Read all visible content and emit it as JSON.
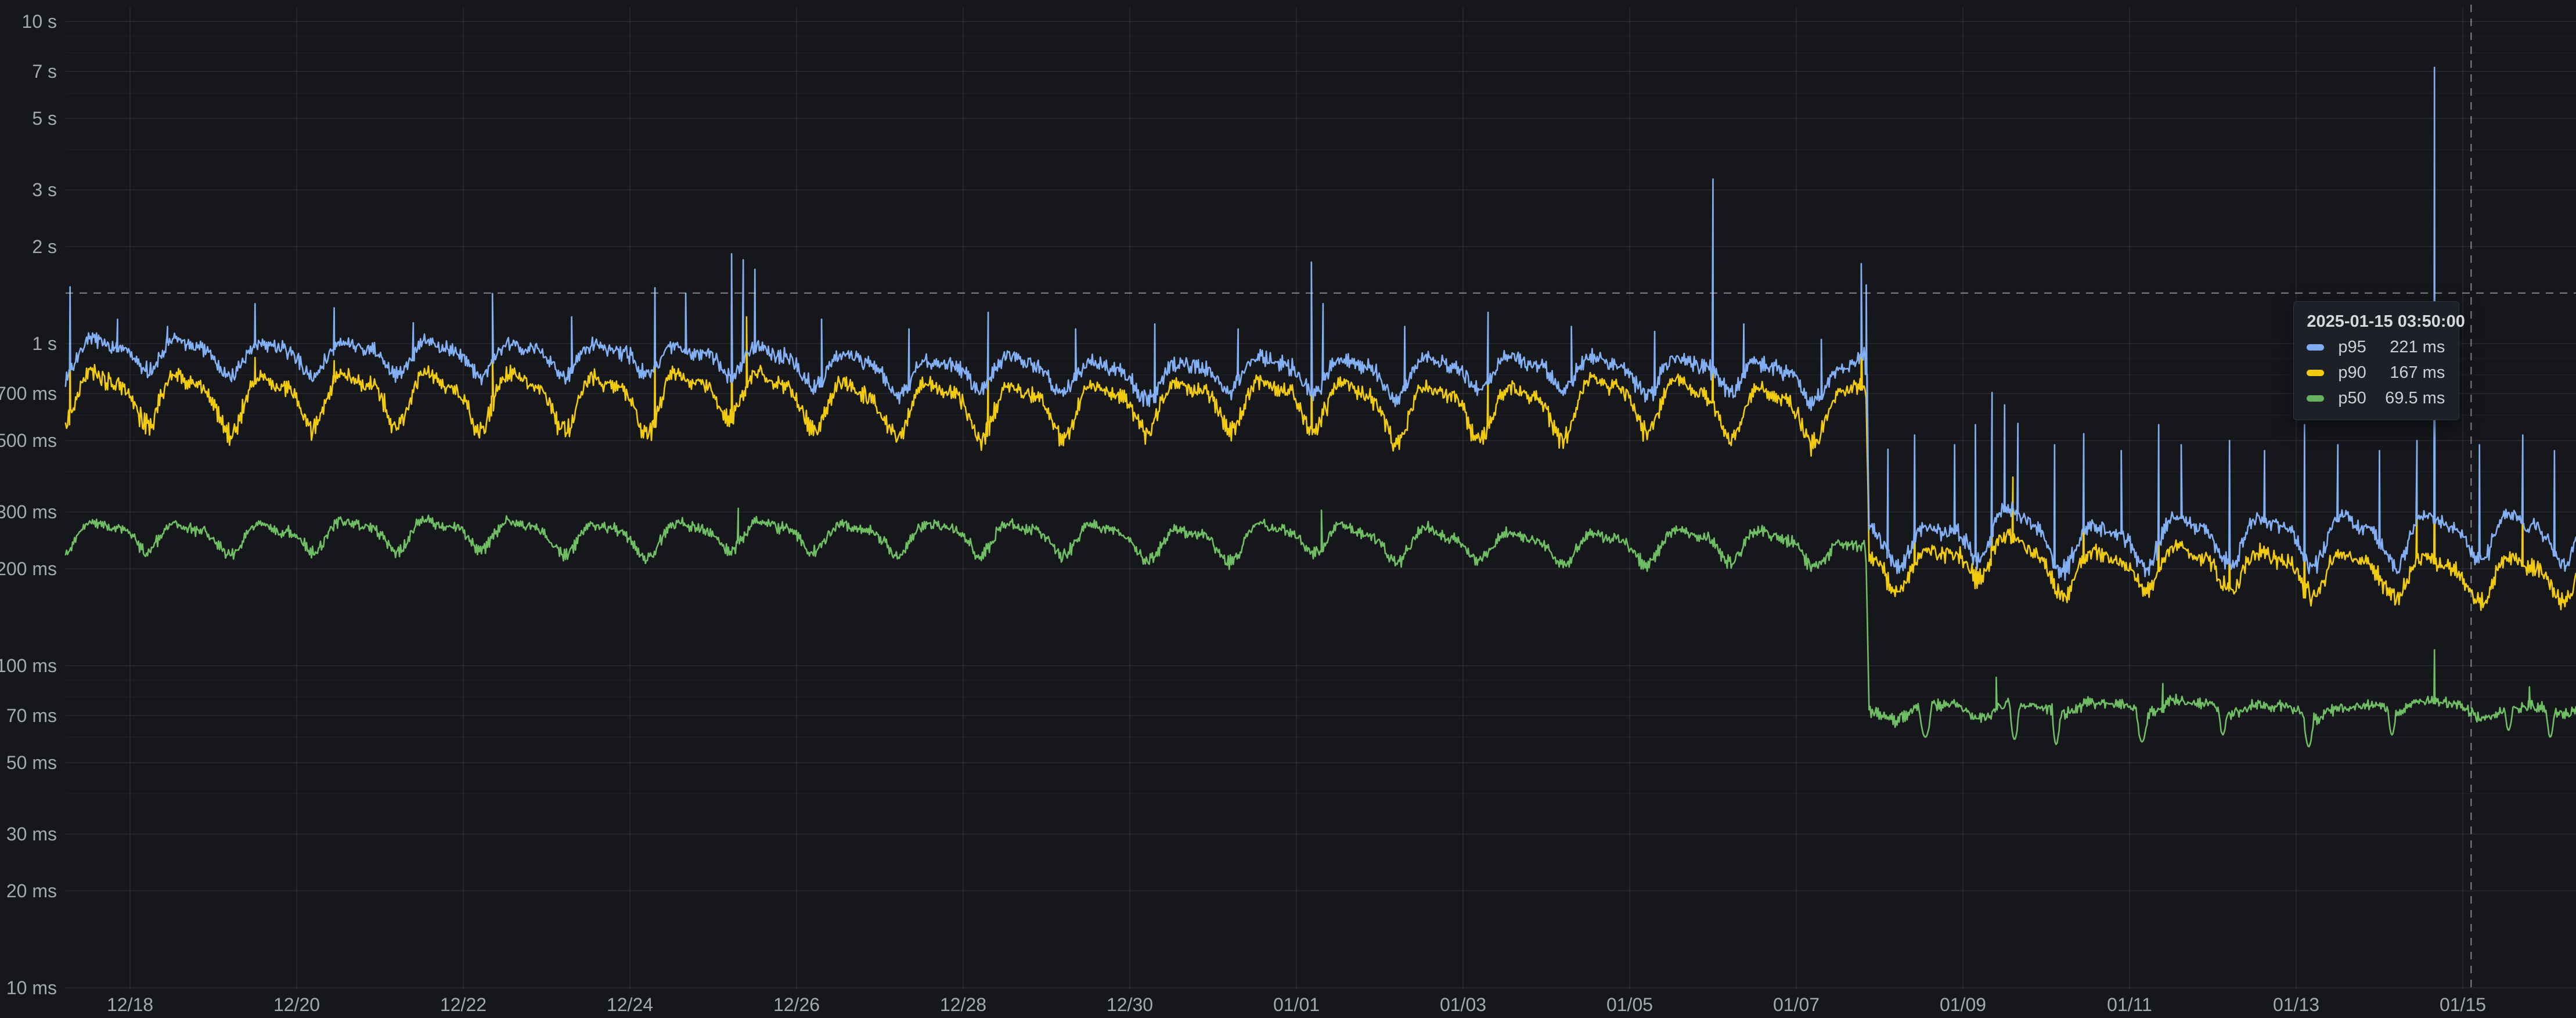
{
  "panel": {
    "background": "#15171b",
    "grid_major_color": "rgba(204,204,220,0.11)",
    "grid_minor_color": "rgba(204,204,220,0.05)",
    "tick_text_color": "#a4a8b0",
    "crosshair_color": "rgba(205,208,216,0.55)"
  },
  "tooltip": {
    "timestamp": "2025-01-15 03:50:00",
    "rows": [
      {
        "label": "p95",
        "value": "221 ms",
        "color": "#7fabf2"
      },
      {
        "label": "p90",
        "value": "167 ms",
        "color": "#f2cc0c"
      },
      {
        "label": "p50",
        "value": "69.5 ms",
        "color": "#67b15f"
      }
    ]
  },
  "chart_data": {
    "type": "line",
    "title": "",
    "xlabel": "",
    "ylabel": "",
    "y_scale": "log",
    "y_domain_ms": [
      10,
      10000
    ],
    "grid": true,
    "legend_position": "tooltip-only",
    "x_ticks": [
      {
        "day": 0,
        "label": "12/18"
      },
      {
        "day": 2,
        "label": "12/20"
      },
      {
        "day": 4,
        "label": "12/22"
      },
      {
        "day": 6,
        "label": "12/24"
      },
      {
        "day": 8,
        "label": "12/26"
      },
      {
        "day": 10,
        "label": "12/28"
      },
      {
        "day": 12,
        "label": "12/30"
      },
      {
        "day": 14,
        "label": "01/01"
      },
      {
        "day": 16,
        "label": "01/03"
      },
      {
        "day": 18,
        "label": "01/05"
      },
      {
        "day": 20,
        "label": "01/07"
      },
      {
        "day": 22,
        "label": "01/09"
      },
      {
        "day": 24,
        "label": "01/11"
      },
      {
        "day": 26,
        "label": "01/13"
      },
      {
        "day": 28,
        "label": "01/15"
      }
    ],
    "y_ticks": [
      {
        "ms": 10000,
        "label": "10 s"
      },
      {
        "ms": 7000,
        "label": "7 s"
      },
      {
        "ms": 5000,
        "label": "5 s"
      },
      {
        "ms": 3000,
        "label": "3 s"
      },
      {
        "ms": 2000,
        "label": "2 s"
      },
      {
        "ms": 1000,
        "label": "1 s"
      },
      {
        "ms": 700,
        "label": "700 ms"
      },
      {
        "ms": 500,
        "label": "500 ms"
      },
      {
        "ms": 300,
        "label": "300 ms"
      },
      {
        "ms": 200,
        "label": "200 ms"
      },
      {
        "ms": 100,
        "label": "100 ms"
      },
      {
        "ms": 70,
        "label": "70 ms"
      },
      {
        "ms": 50,
        "label": "50 ms"
      },
      {
        "ms": 30,
        "label": "30 ms"
      },
      {
        "ms": 20,
        "label": "20 ms"
      },
      {
        "ms": 10,
        "label": "10 ms"
      }
    ],
    "y_minor_gridlines_ms": [
      9000,
      8000,
      6000,
      4000,
      900,
      800,
      600,
      400,
      90,
      80,
      60,
      40
    ],
    "x_range": {
      "start_day": -0.774,
      "end_day": 29.36,
      "day0_label": "12/18"
    },
    "step_day": 20.85,
    "crosshair": {
      "day": 28.1,
      "value_ms": 1435
    },
    "series": [
      {
        "name": "p50",
        "color": "#6fbe63",
        "seed": 21,
        "noise": 0.03,
        "amp_pre": 0.12,
        "amp_post": 0.05,
        "trend": [
          [
            -0.78,
            256
          ],
          [
            0.5,
            252
          ],
          [
            1.5,
            249
          ],
          [
            2.5,
            248
          ],
          [
            3.5,
            250
          ],
          [
            4.5,
            252
          ],
          [
            5.5,
            248
          ],
          [
            6.5,
            253
          ],
          [
            7.3,
            257
          ],
          [
            7.8,
            252
          ],
          [
            8.5,
            247
          ],
          [
            9.5,
            245
          ],
          [
            10.5,
            244
          ],
          [
            11.5,
            243
          ],
          [
            12.5,
            246
          ],
          [
            13.5,
            248
          ],
          [
            14.2,
            250
          ],
          [
            15,
            246
          ],
          [
            16,
            246
          ],
          [
            17,
            247
          ],
          [
            18,
            246
          ],
          [
            19,
            244
          ],
          [
            19.8,
            238
          ],
          [
            20.3,
            230
          ],
          [
            20.55,
            225
          ],
          [
            20.83,
            233
          ],
          [
            20.87,
            72.5
          ],
          [
            21.5,
            71
          ],
          [
            22,
            71.5
          ],
          [
            22.4,
            72.5
          ],
          [
            23,
            72
          ],
          [
            23.5,
            71
          ],
          [
            24,
            71.5
          ],
          [
            24.5,
            72
          ],
          [
            25,
            72
          ],
          [
            25.5,
            71.5
          ],
          [
            26,
            71
          ],
          [
            26.5,
            71.5
          ],
          [
            27,
            72.5
          ],
          [
            27.5,
            74
          ],
          [
            28,
            72
          ],
          [
            28.5,
            72
          ],
          [
            29,
            71.5
          ],
          [
            29.36,
            72
          ]
        ],
        "spikes": [
          [
            7.3,
            308
          ],
          [
            14.3,
            304
          ],
          [
            22.4,
            92
          ],
          [
            24.4,
            88
          ],
          [
            27.66,
            112
          ],
          [
            28.8,
            86
          ]
        ],
        "dips": [
          [
            21.55,
            60,
            0.08
          ],
          [
            22.62,
            59,
            0.06
          ],
          [
            23.12,
            57,
            0.05
          ],
          [
            24.15,
            58,
            0.07
          ],
          [
            25.12,
            61,
            0.05
          ],
          [
            26.15,
            56,
            0.06
          ],
          [
            27.15,
            61,
            0.05
          ],
          [
            28.55,
            63,
            0.05
          ],
          [
            29.05,
            60,
            0.05
          ]
        ]
      },
      {
        "name": "p90",
        "color": "#f2cc0c",
        "seed": 13,
        "noise": 0.046,
        "amp_pre": 0.2,
        "amp_post": 0.17,
        "trend": [
          [
            -0.78,
            730
          ],
          [
            0.5,
            710
          ],
          [
            1.5,
            695
          ],
          [
            2.5,
            700
          ],
          [
            3.5,
            705
          ],
          [
            4.5,
            710
          ],
          [
            5.5,
            695
          ],
          [
            6.5,
            715
          ],
          [
            7.3,
            740
          ],
          [
            7.8,
            700
          ],
          [
            8.5,
            660
          ],
          [
            9.5,
            640
          ],
          [
            10.5,
            635
          ],
          [
            11.5,
            630
          ],
          [
            12.5,
            640
          ],
          [
            13.5,
            660
          ],
          [
            14.2,
            680
          ],
          [
            15,
            650
          ],
          [
            16,
            650
          ],
          [
            17,
            660
          ],
          [
            18,
            665
          ],
          [
            19,
            670
          ],
          [
            19.8,
            640
          ],
          [
            20.3,
            610
          ],
          [
            20.55,
            595
          ],
          [
            20.78,
            690
          ],
          [
            20.83,
            700
          ],
          [
            20.87,
            212
          ],
          [
            21.5,
            192
          ],
          [
            22,
            208
          ],
          [
            22.4,
            228
          ],
          [
            23,
            202
          ],
          [
            23.5,
            196
          ],
          [
            24,
            197
          ],
          [
            24.5,
            200
          ],
          [
            25,
            199
          ],
          [
            25.5,
            196
          ],
          [
            26,
            193
          ],
          [
            26.5,
            192
          ],
          [
            27,
            190
          ],
          [
            27.5,
            194
          ],
          [
            28,
            198
          ],
          [
            28.5,
            200
          ],
          [
            29,
            199
          ],
          [
            29.36,
            202
          ]
        ],
        "spikes": [
          [
            -0.72,
            990
          ],
          [
            1.5,
            905
          ],
          [
            2.45,
            885
          ],
          [
            4.35,
            955
          ],
          [
            6.3,
            985
          ],
          [
            7.22,
            1320
          ],
          [
            7.4,
            1210
          ],
          [
            10.3,
            890
          ],
          [
            14.18,
            1240
          ],
          [
            16.3,
            875
          ],
          [
            19,
            1130
          ],
          [
            20.78,
            1310
          ],
          [
            21.42,
            360
          ],
          [
            22.35,
            430
          ],
          [
            22.6,
            385
          ],
          [
            23.45,
            365
          ],
          [
            24.35,
            400
          ],
          [
            25.2,
            355
          ],
          [
            26.1,
            390
          ],
          [
            27.45,
            345
          ],
          [
            27.66,
            620
          ],
          [
            28.72,
            365
          ]
        ],
        "dips": []
      },
      {
        "name": "p95",
        "color": "#83b0f4",
        "seed": 7,
        "noise": 0.042,
        "amp_pre": 0.13,
        "amp_post": 0.18,
        "trend": [
          [
            -0.78,
            930
          ],
          [
            0.5,
            900
          ],
          [
            1.5,
            880
          ],
          [
            2.5,
            885
          ],
          [
            3.5,
            890
          ],
          [
            4.5,
            895
          ],
          [
            5.5,
            880
          ],
          [
            6.5,
            905
          ],
          [
            7.3,
            940
          ],
          [
            7.8,
            890
          ],
          [
            8.5,
            850
          ],
          [
            9.5,
            830
          ],
          [
            10.5,
            825
          ],
          [
            11.5,
            820
          ],
          [
            12.5,
            825
          ],
          [
            13.5,
            840
          ],
          [
            14.2,
            865
          ],
          [
            15,
            835
          ],
          [
            16,
            835
          ],
          [
            17,
            845
          ],
          [
            18,
            855
          ],
          [
            19,
            860
          ],
          [
            19.8,
            820
          ],
          [
            20.3,
            780
          ],
          [
            20.55,
            760
          ],
          [
            20.78,
            880
          ],
          [
            20.83,
            890
          ],
          [
            20.87,
            265
          ],
          [
            21.5,
            242
          ],
          [
            22,
            265
          ],
          [
            22.4,
            295
          ],
          [
            23,
            258
          ],
          [
            23.5,
            250
          ],
          [
            24,
            252
          ],
          [
            24.5,
            258
          ],
          [
            25,
            256
          ],
          [
            25.5,
            252
          ],
          [
            26,
            250
          ],
          [
            26.5,
            248
          ],
          [
            27,
            246
          ],
          [
            27.5,
            250
          ],
          [
            28,
            254
          ],
          [
            28.5,
            258
          ],
          [
            29,
            256
          ],
          [
            29.36,
            260
          ]
        ],
        "spikes": [
          [
            -0.72,
            1500
          ],
          [
            -0.15,
            1190
          ],
          [
            0.45,
            1130
          ],
          [
            1.5,
            1330
          ],
          [
            2.45,
            1290
          ],
          [
            3.4,
            1160
          ],
          [
            4.35,
            1430
          ],
          [
            5.3,
            1210
          ],
          [
            6.3,
            1490
          ],
          [
            6.67,
            1430
          ],
          [
            7.22,
            1900
          ],
          [
            7.36,
            1820
          ],
          [
            7.5,
            1700
          ],
          [
            8.3,
            1190
          ],
          [
            9.35,
            1110
          ],
          [
            10.3,
            1250
          ],
          [
            11.35,
            1110
          ],
          [
            12.3,
            1150
          ],
          [
            13.3,
            1110
          ],
          [
            14.18,
            1790
          ],
          [
            14.32,
            1330
          ],
          [
            15.3,
            1130
          ],
          [
            16.3,
            1250
          ],
          [
            17.3,
            1130
          ],
          [
            18.3,
            1090
          ],
          [
            19,
            3240
          ],
          [
            19.37,
            1150
          ],
          [
            20.3,
            1030
          ],
          [
            20.78,
            1770
          ],
          [
            20.84,
            1520
          ],
          [
            21.1,
            470
          ],
          [
            21.42,
            520
          ],
          [
            21.9,
            485
          ],
          [
            22.15,
            560
          ],
          [
            22.35,
            705
          ],
          [
            22.5,
            645
          ],
          [
            22.66,
            565
          ],
          [
            23.1,
            485
          ],
          [
            23.45,
            525
          ],
          [
            23.9,
            465
          ],
          [
            24.35,
            560
          ],
          [
            24.62,
            485
          ],
          [
            25.2,
            500
          ],
          [
            25.62,
            465
          ],
          [
            26.1,
            560
          ],
          [
            26.5,
            485
          ],
          [
            27,
            465
          ],
          [
            27.45,
            500
          ],
          [
            27.66,
            7200
          ],
          [
            28.2,
            485
          ],
          [
            28.72,
            520
          ],
          [
            29.1,
            465
          ]
        ],
        "dips": []
      }
    ]
  }
}
